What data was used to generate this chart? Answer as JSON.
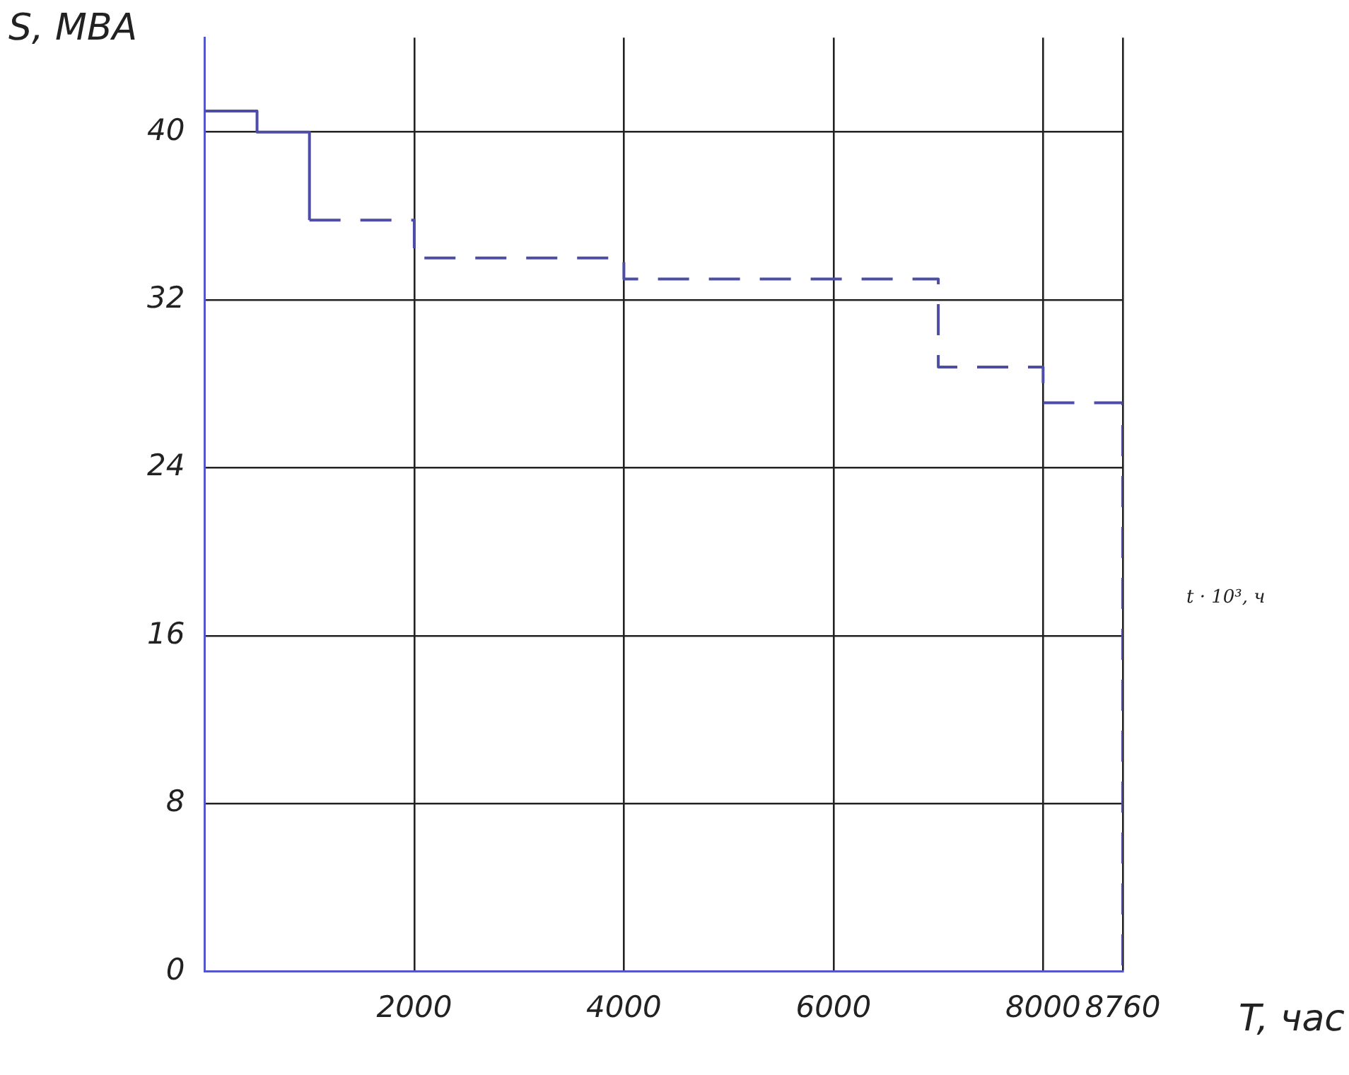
{
  "chart_data": {
    "type": "step",
    "xlabel": "T, час",
    "ylabel": "S, MBA",
    "annotations": [
      "t · 10³, ч"
    ],
    "xlim": [
      0,
      8760
    ],
    "xticks": [
      {
        "value": 0,
        "label": null
      },
      2000,
      4000,
      6000,
      8000,
      8760
    ],
    "ylim": [
      0,
      44.5
    ],
    "yticks": [
      0,
      8,
      16,
      24,
      32,
      40
    ],
    "grid": true,
    "legend": false,
    "series": [
      {
        "color": "#4d4da6",
        "line_style": "solid",
        "x": [
          0,
          500,
          1000
        ],
        "values": [
          41,
          40,
          35.8
        ]
      },
      {
        "color": "#4d4da6",
        "line_style": "dashed",
        "x": [
          1000,
          2000,
          4000,
          7000,
          8000,
          8760
        ],
        "values": [
          35.8,
          34,
          33,
          28.8,
          27.1,
          0
        ]
      }
    ]
  }
}
